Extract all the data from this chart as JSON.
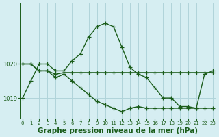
{
  "background_color": "#d6eef2",
  "grid_color": "#b0d4da",
  "line_color": "#1a5c1a",
  "xlabel": "Graphe pression niveau de la mer (hPa)",
  "xlabel_fontsize": 7.5,
  "yticks": [
    1019,
    1020
  ],
  "ytick_labels": [
    "1019",
    "1020"
  ],
  "xticks": [
    0,
    1,
    2,
    3,
    4,
    5,
    6,
    7,
    8,
    9,
    10,
    11,
    12,
    13,
    14,
    15,
    16,
    17,
    18,
    19,
    20,
    21,
    22,
    23
  ],
  "ylim": [
    1018.4,
    1021.8
  ],
  "xlim": [
    -0.3,
    23.3
  ],
  "series": [
    [
      1019.0,
      1019.5,
      1020.0,
      1020.0,
      1019.8,
      1019.8,
      1020.1,
      1020.3,
      1020.8,
      1021.1,
      1021.2,
      1021.1,
      1020.5,
      1019.9,
      1019.7,
      1019.6,
      1019.3,
      1019.0,
      1019.0,
      1018.75,
      1018.75,
      1018.7,
      1019.7,
      1019.8
    ],
    [
      1020.0,
      1020.0,
      1019.8,
      1019.8,
      1019.7,
      1019.75,
      1019.75,
      1019.75,
      1019.75,
      1019.75,
      1019.75,
      1019.75,
      1019.75,
      1019.75,
      1019.75,
      1019.75,
      1019.75,
      1019.75,
      1019.75,
      1019.75,
      1019.75,
      1019.75,
      1019.75,
      1019.75
    ],
    [
      1020.0,
      1020.0,
      1019.8,
      1019.8,
      1019.6,
      1019.7,
      1019.5,
      1019.3,
      1019.1,
      1018.9,
      1018.8,
      1018.7,
      1018.6,
      1018.7,
      1018.75,
      1018.7,
      1018.7,
      1018.7,
      1018.7,
      1018.7,
      1018.7,
      1018.7,
      1018.7,
      1018.7
    ]
  ],
  "marker": "+",
  "markersize": 4,
  "linewidth": 1.0
}
